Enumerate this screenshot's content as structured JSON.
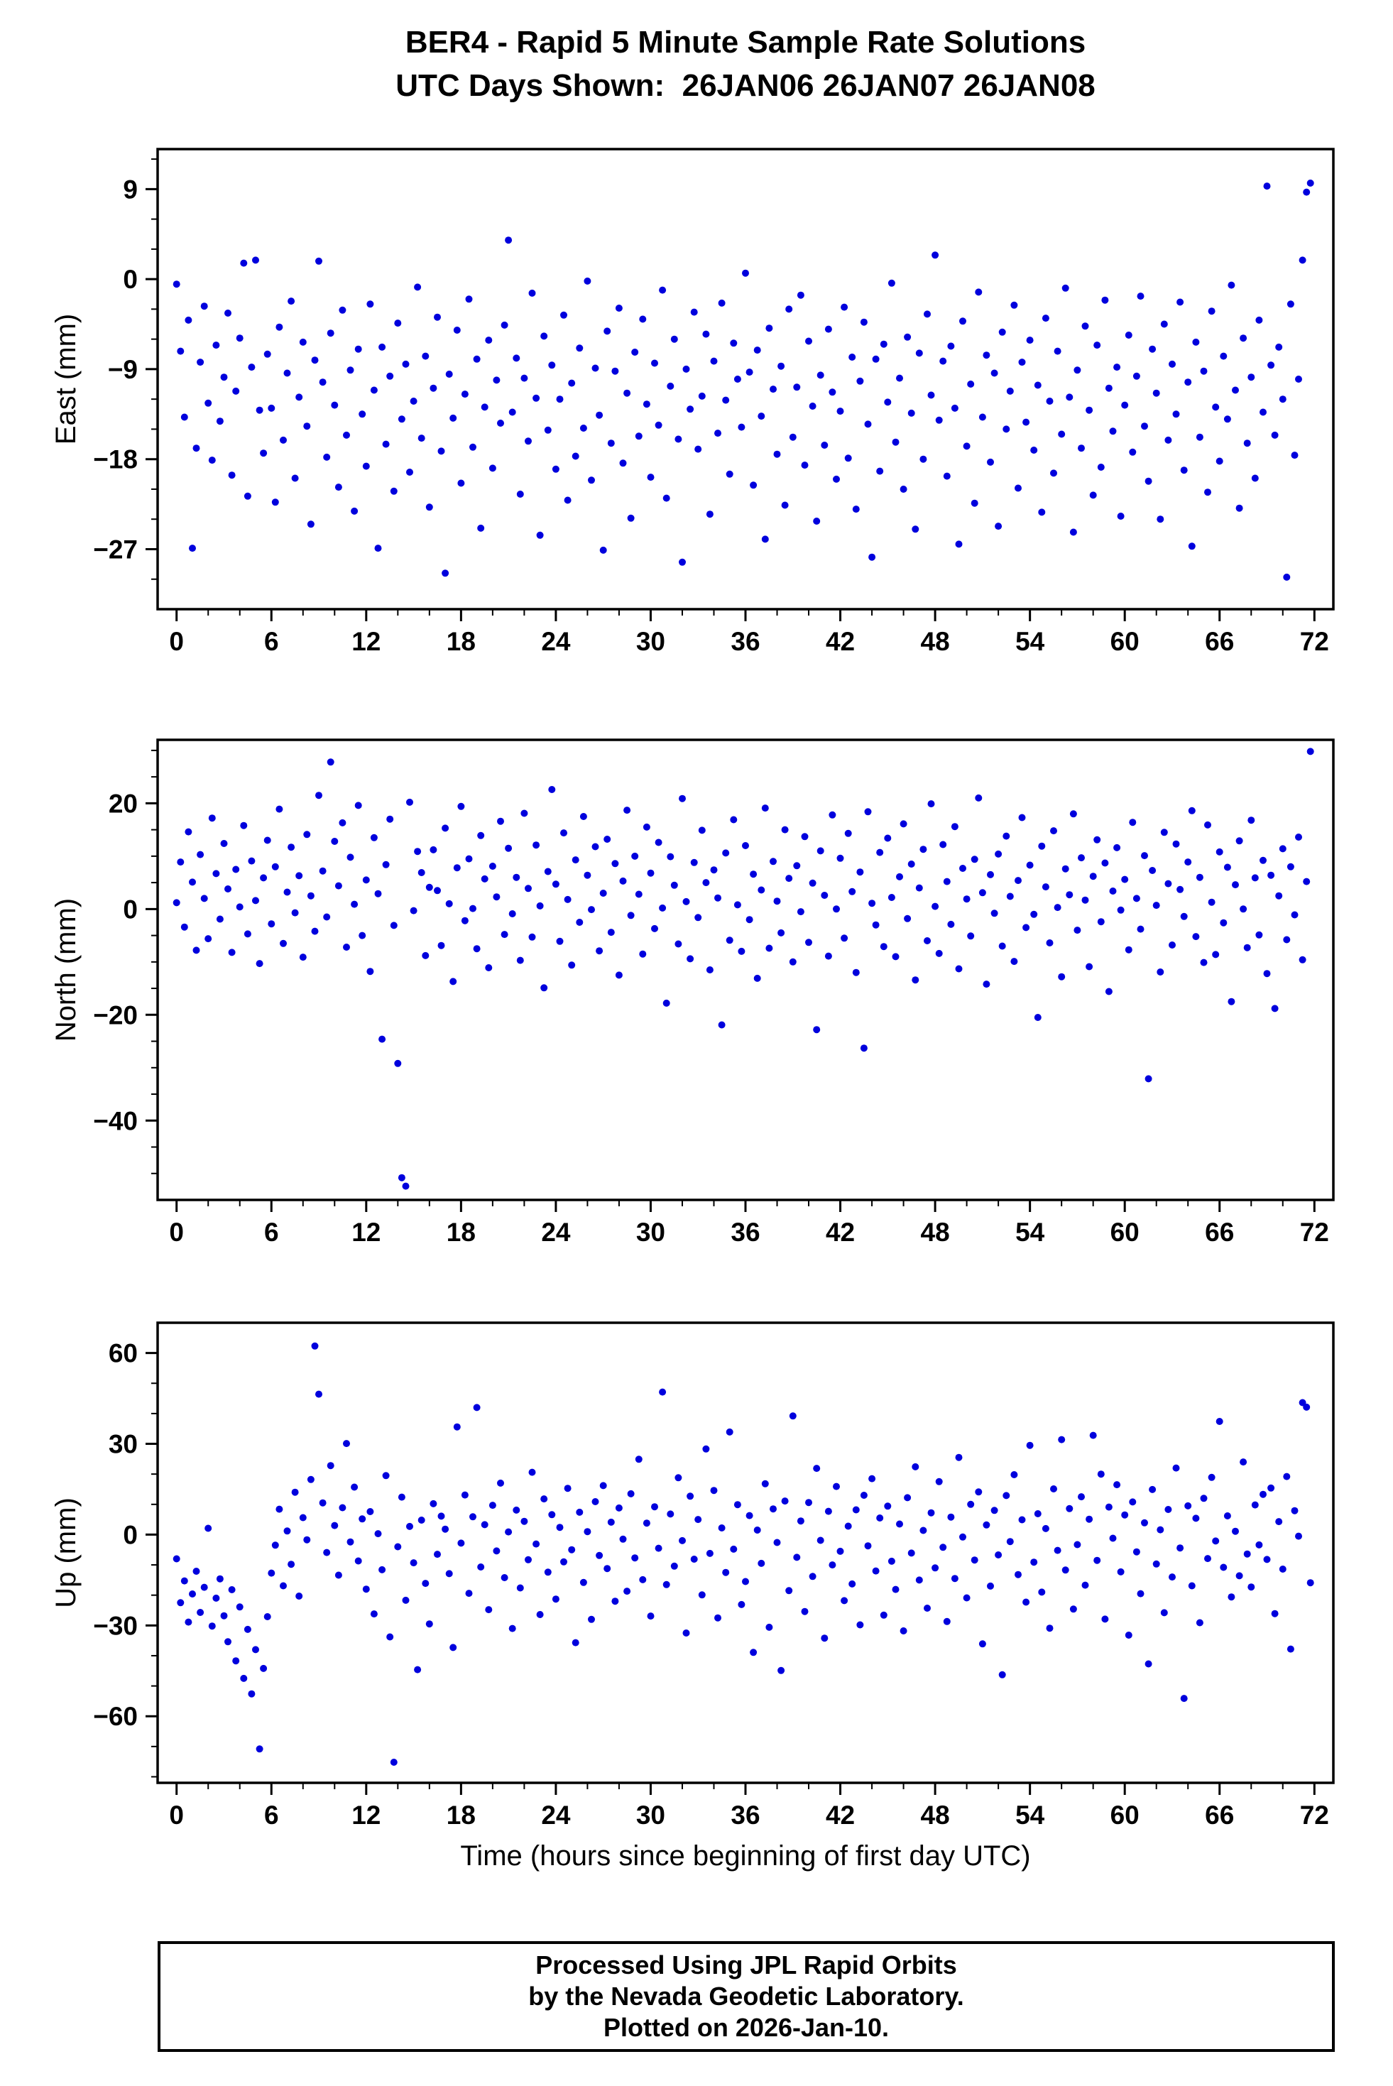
{
  "page_title": {
    "line1": "BER4 - Rapid 5 Minute Sample Rate Solutions",
    "line2": "UTC Days Shown:  26JAN06 26JAN07 26JAN08"
  },
  "x_axis_label": "Time (hours since beginning of first day UTC)",
  "footer": {
    "line1": "Processed Using JPL Rapid Orbits",
    "line2": "by the Nevada Geodetic Laboratory.",
    "line3": "Plotted on 2026-Jan-10."
  },
  "chart_data": [
    {
      "type": "scatter",
      "name": "east",
      "ylabel": "East (mm)",
      "marker_color": "#0000dd",
      "xlim": [
        -1.2,
        73.2
      ],
      "ylim": [
        -33,
        13
      ],
      "xticks": [
        0,
        6,
        12,
        18,
        24,
        30,
        36,
        42,
        48,
        54,
        60,
        66,
        72
      ],
      "xtick_labels": [
        "0",
        "6",
        "12",
        "18",
        "24",
        "30",
        "36",
        "42",
        "48",
        "54",
        "60",
        "66",
        "72"
      ],
      "x_minor_step": 2,
      "yticks": [
        9,
        0,
        -9,
        -18,
        -27
      ],
      "ytick_labels": [
        "9",
        "0",
        "−9",
        "−18",
        "−27"
      ],
      "y_minor_step": 3,
      "x_start": 0,
      "x_step": 0.25,
      "y": [
        -0.5,
        -7.2,
        -13.8,
        -4.1,
        -26.9,
        -16.9,
        -8.3,
        -2.7,
        -12.4,
        -18.1,
        -6.6,
        -14.2,
        -9.8,
        -3.4,
        -19.6,
        -11.2,
        -5.9,
        1.6,
        -21.7,
        -8.8,
        1.9,
        -13.1,
        -17.4,
        -7.5,
        -12.9,
        -22.3,
        -4.8,
        -16.1,
        -9.4,
        -2.2,
        -19.9,
        -11.8,
        -6.3,
        -14.7,
        -24.5,
        -8.1,
        1.8,
        -10.3,
        -17.8,
        -5.4,
        -12.6,
        -20.8,
        -3.1,
        -15.6,
        -9.1,
        -23.2,
        -7.0,
        -13.5,
        -18.7,
        -2.5,
        -11.1,
        -26.9,
        -6.8,
        -16.5,
        -9.7,
        -21.2,
        -4.4,
        -14.0,
        -8.5,
        -19.3,
        -12.2,
        -0.8,
        -15.9,
        -7.7,
        -22.8,
        -10.9,
        -3.8,
        -17.2,
        -29.4,
        -9.5,
        -13.9,
        -5.1,
        -20.4,
        -11.5,
        -2.0,
        -16.8,
        -8.0,
        -24.9,
        -12.8,
        -6.1,
        -18.9,
        -10.1,
        -14.4,
        -4.6,
        3.9,
        -13.3,
        -7.9,
        -21.5,
        -9.9,
        -16.2,
        -1.4,
        -11.9,
        -25.6,
        -5.7,
        -15.1,
        -8.6,
        -19.0,
        -12.0,
        -3.6,
        -22.1,
        -10.4,
        -17.7,
        -6.9,
        -14.9,
        -0.2,
        -20.1,
        -8.9,
        -13.6,
        -27.1,
        -5.2,
        -16.4,
        -9.2,
        -2.9,
        -18.4,
        -11.4,
        -23.9,
        -7.3,
        -15.7,
        -4.0,
        -12.5,
        -19.8,
        -8.4,
        -14.6,
        -1.1,
        -21.9,
        -10.7,
        -6.0,
        -16.0,
        -28.3,
        -9.0,
        -13.0,
        -3.3,
        -17.0,
        -11.7,
        -5.5,
        -23.5,
        -8.2,
        -15.4,
        -2.4,
        -12.1,
        -19.5,
        -6.4,
        -10.0,
        -14.8,
        0.6,
        -9.3,
        -20.6,
        -7.1,
        -13.7,
        -26.0,
        -4.9,
        -11.0,
        -17.5,
        -8.7,
        -22.6,
        -3.0,
        -15.8,
        -10.8,
        -1.6,
        -18.6,
        -6.2,
        -12.7,
        -24.2,
        -9.6,
        -16.6,
        -5.0,
        -11.3,
        -20.0,
        -13.2,
        -2.8,
        -17.9,
        -7.8,
        -23.0,
        -10.2,
        -4.3,
        -14.5,
        -27.8,
        -8.0,
        -19.2,
        -6.5,
        -12.3,
        -0.4,
        -16.3,
        -9.9,
        -21.0,
        -5.8,
        -13.4,
        -25.0,
        -7.4,
        -18.0,
        -3.5,
        -11.6,
        2.4,
        -14.1,
        -8.2,
        -19.7,
        -6.7,
        -12.9,
        -26.5,
        -4.2,
        -16.7,
        -10.5,
        -22.4,
        -1.3,
        -13.8,
        -7.6,
        -18.3,
        -9.4,
        -24.7,
        -5.3,
        -15.0,
        -11.2,
        -2.6,
        -20.9,
        -8.3,
        -14.3,
        -6.1,
        -17.1,
        -10.6,
        -23.3,
        -3.9,
        -12.2,
        -19.4,
        -7.2,
        -15.5,
        -0.9,
        -11.8,
        -25.3,
        -9.1,
        -16.9,
        -4.7,
        -13.1,
        -21.6,
        -6.6,
        -18.8,
        -2.1,
        -10.9,
        -15.2,
        -8.8,
        -23.7,
        -12.6,
        -5.6,
        -17.3,
        -9.7,
        -1.7,
        -14.7,
        -20.2,
        -7.0,
        -11.4,
        -24.0,
        -4.5,
        -16.1,
        -8.5,
        -13.5,
        -2.3,
        -19.1,
        -10.3,
        -26.7,
        -6.3,
        -15.8,
        -9.2,
        -21.3,
        -3.2,
        -12.8,
        -18.2,
        -7.7,
        -14.0,
        -0.6,
        -11.1,
        -22.9,
        -5.9,
        -16.4,
        -9.8,
        -19.9,
        -4.1,
        -13.3,
        9.3,
        -8.6,
        -15.6,
        -6.8,
        -12.0,
        -29.8,
        -2.5,
        -17.6,
        -10.0,
        1.9,
        8.7,
        9.6
      ]
    },
    {
      "type": "scatter",
      "name": "north",
      "ylabel": "North (mm)",
      "marker_color": "#0000dd",
      "xlim": [
        -1.2,
        73.2
      ],
      "ylim": [
        -55,
        32
      ],
      "xticks": [
        0,
        6,
        12,
        18,
        24,
        30,
        36,
        42,
        48,
        54,
        60,
        66,
        72
      ],
      "xtick_labels": [
        "0",
        "6",
        "12",
        "18",
        "24",
        "30",
        "36",
        "42",
        "48",
        "54",
        "60",
        "66",
        "72"
      ],
      "x_minor_step": 2,
      "yticks": [
        20,
        0,
        -20,
        -40
      ],
      "ytick_labels": [
        "20",
        "0",
        "−20",
        "−40"
      ],
      "y_minor_step": 5,
      "x_start": 0,
      "x_step": 0.25,
      "y": [
        1.2,
        8.9,
        -3.4,
        14.6,
        5.1,
        -7.8,
        10.3,
        2.0,
        -5.6,
        17.2,
        6.7,
        -1.9,
        12.4,
        3.8,
        -8.2,
        7.5,
        0.4,
        15.8,
        -4.7,
        9.1,
        1.6,
        -10.3,
        5.9,
        13.0,
        -2.8,
        8.0,
        18.9,
        -6.5,
        3.2,
        11.7,
        -0.7,
        6.3,
        -9.1,
        14.1,
        2.5,
        -4.2,
        21.5,
        7.2,
        -1.5,
        27.8,
        12.8,
        4.4,
        16.3,
        -7.2,
        9.8,
        0.9,
        19.6,
        -5.0,
        5.5,
        -11.8,
        13.5,
        2.9,
        -24.6,
        8.4,
        17.0,
        -3.1,
        -29.2,
        -50.8,
        -52.4,
        20.2,
        -0.3,
        10.9,
        6.9,
        -8.8,
        4.1,
        11.2,
        3.5,
        -6.9,
        15.3,
        1.0,
        -13.7,
        7.8,
        19.4,
        -2.2,
        9.5,
        0.1,
        -7.5,
        13.9,
        5.7,
        -11.1,
        8.1,
        2.3,
        16.6,
        -4.8,
        11.5,
        -0.9,
        6.0,
        -9.7,
        18.1,
        3.9,
        -5.3,
        12.1,
        0.6,
        -14.9,
        7.1,
        22.6,
        4.7,
        -6.1,
        14.4,
        1.8,
        -10.6,
        9.3,
        -2.5,
        17.5,
        6.4,
        -0.1,
        11.8,
        -7.9,
        3.0,
        13.2,
        -4.4,
        8.6,
        -12.5,
        5.3,
        18.7,
        -1.2,
        10.0,
        2.8,
        -8.5,
        15.5,
        6.8,
        -3.7,
        12.6,
        0.2,
        -17.8,
        9.9,
        4.5,
        -6.6,
        20.9,
        1.4,
        -9.4,
        8.8,
        -1.6,
        14.9,
        5.0,
        -11.5,
        7.4,
        2.1,
        -21.9,
        10.6,
        -5.9,
        16.9,
        0.8,
        -8.0,
        12.0,
        -2.0,
        6.6,
        -13.1,
        3.6,
        19.1,
        -7.4,
        9.0,
        1.5,
        -4.5,
        15.0,
        5.8,
        -10.0,
        8.2,
        -0.5,
        13.7,
        -6.3,
        4.9,
        -22.8,
        11.0,
        2.6,
        -8.9,
        17.8,
        0.0,
        9.6,
        -5.5,
        14.3,
        3.3,
        -12.0,
        7.0,
        -26.3,
        18.4,
        1.1,
        -3.0,
        10.7,
        -7.1,
        13.4,
        2.2,
        -9.0,
        6.1,
        16.1,
        -1.8,
        8.5,
        -13.4,
        4.0,
        11.3,
        -6.0,
        19.9,
        0.5,
        -8.4,
        12.2,
        5.2,
        -2.9,
        15.6,
        -11.3,
        7.7,
        1.9,
        -5.1,
        9.4,
        21.0,
        3.1,
        -14.2,
        6.5,
        -0.8,
        10.4,
        -7.0,
        13.8,
        2.4,
        -9.9,
        5.4,
        17.3,
        -3.5,
        8.3,
        -1.0,
        -20.5,
        11.9,
        4.2,
        -6.4,
        14.8,
        0.3,
        -12.8,
        7.6,
        2.7,
        18.0,
        -4.0,
        9.7,
        1.7,
        -10.9,
        6.2,
        13.1,
        -2.4,
        8.7,
        -15.6,
        3.4,
        11.6,
        -0.2,
        5.6,
        -7.7,
        16.4,
        2.0,
        -3.8,
        10.1,
        -32.1,
        7.3,
        0.7,
        -11.9,
        14.5,
        4.8,
        -6.8,
        12.3,
        3.7,
        -1.4,
        8.9,
        18.6,
        -5.2,
        6.0,
        -10.1,
        15.9,
        1.3,
        -8.6,
        10.8,
        -2.6,
        7.9,
        -17.5,
        4.6,
        12.9,
        0.0,
        -7.3,
        16.8,
        5.9,
        -4.9,
        9.2,
        -12.2,
        6.4,
        -18.8,
        2.5,
        11.4,
        -5.8,
        8.0,
        -1.1,
        13.6,
        -9.6,
        5.2,
        29.8
      ]
    },
    {
      "type": "scatter",
      "name": "up",
      "ylabel": "Up (mm)",
      "marker_color": "#0000dd",
      "xlim": [
        -1.2,
        73.2
      ],
      "ylim": [
        -82,
        70
      ],
      "xticks": [
        0,
        6,
        12,
        18,
        24,
        30,
        36,
        42,
        48,
        54,
        60,
        66,
        72
      ],
      "xtick_labels": [
        "0",
        "6",
        "12",
        "18",
        "24",
        "30",
        "36",
        "42",
        "48",
        "54",
        "60",
        "66",
        "72"
      ],
      "x_minor_step": 2,
      "yticks": [
        60,
        30,
        0,
        -30,
        -60
      ],
      "ytick_labels": [
        "60",
        "30",
        "0",
        "−30",
        "−60"
      ],
      "y_minor_step": 10,
      "x_start": 0,
      "x_step": 0.25,
      "y": [
        -8.0,
        -22.5,
        -15.3,
        -28.9,
        -19.6,
        -12.1,
        -25.7,
        -17.4,
        2.1,
        -30.2,
        -21.0,
        -14.6,
        -26.8,
        -35.4,
        -18.2,
        -41.7,
        -23.9,
        -47.5,
        -31.3,
        -52.6,
        -38.0,
        -70.8,
        -44.2,
        -27.1,
        -12.7,
        -3.5,
        8.4,
        -16.9,
        1.2,
        -9.8,
        14.0,
        -20.3,
        5.6,
        -1.7,
        18.2,
        62.3,
        46.4,
        10.5,
        -5.9,
        22.8,
        3.0,
        -13.4,
        8.9,
        30.1,
        -2.4,
        15.7,
        -8.7,
        5.2,
        -18.0,
        7.6,
        -26.2,
        0.3,
        -11.6,
        19.5,
        -33.8,
        -75.2,
        -4.0,
        12.4,
        -21.7,
        2.7,
        -9.3,
        -44.6,
        4.8,
        -16.1,
        -29.5,
        10.2,
        -6.5,
        6.1,
        1.8,
        -12.9,
        -37.3,
        35.6,
        -2.8,
        13.1,
        -19.4,
        5.9,
        42.0,
        -10.7,
        3.3,
        -24.8,
        9.7,
        -5.4,
        17.0,
        -14.2,
        0.9,
        -31.0,
        8.1,
        -17.6,
        4.4,
        -8.3,
        20.6,
        -3.1,
        -26.4,
        11.8,
        -12.4,
        6.6,
        -21.3,
        2.4,
        -9.0,
        15.3,
        -5.0,
        -35.7,
        7.4,
        -15.8,
        1.0,
        -28.0,
        10.9,
        -6.9,
        16.2,
        -11.2,
        4.1,
        -22.0,
        8.8,
        -1.5,
        -18.7,
        13.5,
        -7.7,
        24.9,
        -14.9,
        3.8,
        -26.9,
        9.2,
        -4.5,
        47.1,
        -16.5,
        6.8,
        -10.4,
        18.8,
        -2.0,
        -32.5,
        12.7,
        -8.1,
        5.0,
        -19.9,
        28.3,
        -6.2,
        14.6,
        -27.5,
        2.2,
        -12.5,
        33.9,
        -4.8,
        9.9,
        -23.1,
        -15.5,
        6.3,
        -38.9,
        1.5,
        -9.5,
        16.8,
        -30.6,
        8.5,
        -2.6,
        -44.9,
        11.1,
        -18.5,
        39.2,
        -7.5,
        4.5,
        -25.4,
        10.6,
        -13.8,
        21.9,
        -1.9,
        -34.2,
        7.7,
        -10.0,
        15.9,
        -5.5,
        -21.8,
        2.8,
        -16.3,
        8.2,
        -29.8,
        13.0,
        -3.7,
        18.5,
        -12.0,
        5.5,
        -26.6,
        9.4,
        -8.8,
        -18.1,
        3.5,
        -31.8,
        12.2,
        -6.1,
        22.4,
        -15.0,
        1.4,
        -24.3,
        7.2,
        -11.0,
        17.5,
        -4.2,
        -28.7,
        5.8,
        -14.5,
        25.5,
        -0.8,
        -20.9,
        10.0,
        -8.4,
        14.1,
        -36.1,
        3.2,
        -17.0,
        8.0,
        -6.7,
        -46.3,
        12.9,
        -2.3,
        19.8,
        -13.2,
        4.9,
        -22.3,
        29.5,
        -9.1,
        6.9,
        -19.0,
        2.0,
        -30.9,
        15.1,
        -5.2,
        31.4,
        -11.7,
        8.6,
        -24.6,
        -3.3,
        12.5,
        -16.7,
        5.1,
        32.8,
        -8.5,
        20.0,
        -27.9,
        9.1,
        -1.2,
        16.5,
        -12.3,
        6.5,
        -33.2,
        10.8,
        -5.7,
        -19.5,
        3.9,
        -42.7,
        14.9,
        -9.7,
        1.6,
        -25.8,
        8.3,
        -14.0,
        22.0,
        -4.4,
        -54.1,
        9.5,
        -16.9,
        5.4,
        -29.1,
        12.0,
        -7.9,
        18.9,
        -2.1,
        37.4,
        -10.8,
        6.2,
        -20.6,
        1.1,
        -13.6,
        24.0,
        -6.4,
        -17.3,
        9.8,
        -3.4,
        13.3,
        -8.2,
        15.4,
        -26.1,
        4.3,
        -11.4,
        19.2,
        -37.8,
        7.9,
        -0.5,
        43.6,
        42.1,
        -15.9
      ]
    }
  ]
}
